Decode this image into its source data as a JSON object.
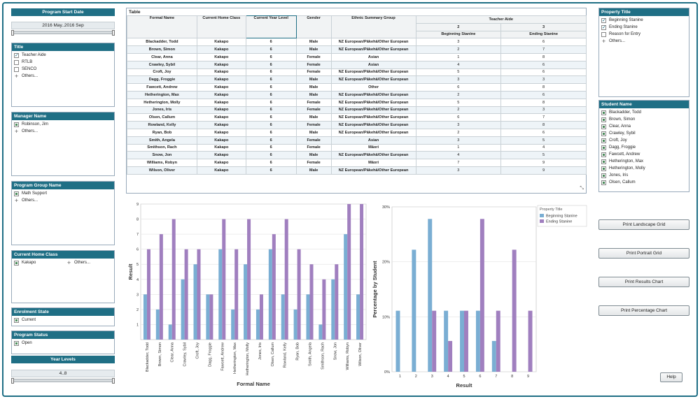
{
  "program_start_date": {
    "title": "Program Start Date",
    "value": "2016 May..2016 Sep"
  },
  "title_filter": {
    "title": "Title",
    "items": [
      {
        "label": "Teacher Aide",
        "checked": true
      },
      {
        "label": "RTLB",
        "checked": false
      },
      {
        "label": "SENCO",
        "checked": false
      }
    ],
    "others": "Others..."
  },
  "manager_name": {
    "title": "Manager Name",
    "items": [
      {
        "label": "Robinson, Jim"
      }
    ],
    "others": "Others..."
  },
  "program_group_name": {
    "title": "Program Group Name",
    "items": [
      {
        "label": "Math Support"
      }
    ],
    "others": "Others..."
  },
  "current_home_class": {
    "title": "Current Home Class",
    "items": [
      {
        "label": "Kakapo"
      }
    ],
    "others": "Others..."
  },
  "enrolment_state": {
    "title": "Enrolment State",
    "items": [
      {
        "label": "Current"
      }
    ]
  },
  "program_status": {
    "title": "Program Status",
    "items": [
      {
        "label": "Open"
      }
    ]
  },
  "year_levels": {
    "title": "Year Levels",
    "value": "4..8"
  },
  "table": {
    "title": "Table",
    "headers": {
      "formal_name": "Formal Name",
      "home_class": "Current Home Class",
      "year_level": "Current Year Level",
      "gender": "Gender",
      "ethnic": "Ethnic Summary Group",
      "teacher_aide": "Teacher Aide",
      "col2": "2",
      "col3": "3",
      "beginning": "Beginning Stanine",
      "ending": "Ending Stanine"
    },
    "rows": [
      [
        "Blackadder, Todd",
        "Kakapo",
        "6",
        "Male",
        "NZ European/Pākehā/Other European",
        "3",
        "6"
      ],
      [
        "Brown, Simon",
        "Kakapo",
        "6",
        "Male",
        "NZ European/Pākehā/Other European",
        "2",
        "7"
      ],
      [
        "Clear, Anna",
        "Kakapo",
        "6",
        "Female",
        "Asian",
        "1",
        "8"
      ],
      [
        "Crawley, Sybil",
        "Kakapo",
        "6",
        "Female",
        "Asian",
        "4",
        "6"
      ],
      [
        "Croft, Joy",
        "Kakapo",
        "6",
        "Female",
        "NZ European/Pākehā/Other European",
        "5",
        "6"
      ],
      [
        "Dagg, Froggie",
        "Kakapo",
        "6",
        "Male",
        "NZ European/Pākehā/Other European",
        "3",
        "3"
      ],
      [
        "Fawcett, Andrew",
        "Kakapo",
        "6",
        "Male",
        "Other",
        "6",
        "8"
      ],
      [
        "Hetherington, Max",
        "Kakapo",
        "6",
        "Male",
        "NZ European/Pākehā/Other European",
        "2",
        "6"
      ],
      [
        "Hetherington, Molly",
        "Kakapo",
        "6",
        "Female",
        "NZ European/Pākehā/Other European",
        "5",
        "8"
      ],
      [
        "Jones, Iris",
        "Kakapo",
        "6",
        "Female",
        "NZ European/Pākehā/Other European",
        "2",
        "3"
      ],
      [
        "Olsen, Callum",
        "Kakapo",
        "6",
        "Male",
        "NZ European/Pākehā/Other European",
        "6",
        "7"
      ],
      [
        "Rowland, Kelly",
        "Kakapo",
        "6",
        "Female",
        "NZ European/Pākehā/Other European",
        "3",
        "8"
      ],
      [
        "Ryan, Bob",
        "Kakapo",
        "6",
        "Male",
        "NZ European/Pākehā/Other European",
        "2",
        "6"
      ],
      [
        "Smith, Angela",
        "Kakapo",
        "6",
        "Female",
        "Asian",
        "3",
        "5"
      ],
      [
        "Smithson, Rach",
        "Kakapo",
        "6",
        "Female",
        "Māori",
        "1",
        "4"
      ],
      [
        "Snow, Jon",
        "Kakapo",
        "6",
        "Male",
        "NZ European/Pākehā/Other European",
        "4",
        "5"
      ],
      [
        "Williams, Robyn",
        "Kakapo",
        "6",
        "Female",
        "Māori",
        "7",
        "9"
      ],
      [
        "Wilson, Oliver",
        "Kakapo",
        "6",
        "Male",
        "NZ European/Pākehā/Other European",
        "3",
        "9"
      ]
    ]
  },
  "property_title": {
    "title": "Property Title",
    "items": [
      {
        "label": "Beginning Stanine",
        "checked": true
      },
      {
        "label": "Ending Stanine",
        "checked": true
      },
      {
        "label": "Reason for Entry",
        "checked": false
      }
    ],
    "others": "Others..."
  },
  "student_name": {
    "title": "Student Name",
    "items": [
      "Blackadder, Todd",
      "Brown, Simon",
      "Clear, Anna",
      "Crawley, Sybil",
      "Croft, Joy",
      "Dagg, Froggie",
      "Fawcett, Andrew",
      "Hetherington, Max",
      "Hetherington, Molly",
      "Jones, Iris",
      "Olsen, Callum"
    ]
  },
  "buttons": {
    "print_landscape": "Print Landscape Grid",
    "print_portrait": "Print Portrait Grid",
    "print_results": "Print Results Chart",
    "print_percentage": "Print Percentage Chart",
    "help": "Help"
  },
  "colors": {
    "accent": "#1f6f85",
    "beginning": "#7aaed3",
    "ending": "#a07fbf"
  },
  "chart_data": [
    {
      "type": "bar",
      "xlabel": "Formal Name",
      "ylabel": "Result",
      "ylim": [
        0,
        9
      ],
      "yticks": [
        "1",
        "2",
        "3",
        "4",
        "5",
        "6",
        "7",
        "8",
        "9"
      ],
      "categories": [
        "Blackadder, Todd",
        "Brown, Simon",
        "Clear, Anna",
        "Crawley, Sybil",
        "Croft, Joy",
        "Dagg, Froggie",
        "Fawcett, Andrew",
        "Hetherington, Max",
        "Hetherington, Molly",
        "Jones, Iris",
        "Olsen, Callum",
        "Rowland, Kelly",
        "Ryan, Bob",
        "Smith, Angela",
        "Smithson, Rach",
        "Snow, Jon",
        "Williams, Robyn",
        "Wilson, Oliver"
      ],
      "series": [
        {
          "values": [
            3,
            2,
            1,
            4,
            5,
            3,
            6,
            2,
            5,
            2,
            6,
            3,
            2,
            3,
            1,
            4,
            7,
            3
          ]
        },
        {
          "values": [
            6,
            7,
            8,
            6,
            6,
            3,
            8,
            6,
            8,
            3,
            7,
            8,
            6,
            5,
            4,
            5,
            9,
            9
          ]
        }
      ],
      "grid": true
    },
    {
      "type": "bar",
      "xlabel": "Result",
      "ylabel": "Percentage by Student",
      "ylim": [
        0,
        30
      ],
      "yticks": [
        "0%",
        "10%",
        "20%",
        "30%"
      ],
      "categories": [
        "1",
        "2",
        "3",
        "4",
        "5",
        "6",
        "7",
        "8",
        "9"
      ],
      "legend_title": "Property Title",
      "legend_position": "top-right",
      "series": [
        {
          "name": "Beginning Stanine",
          "values": [
            11.1,
            22.2,
            27.8,
            11.1,
            11.1,
            11.1,
            5.6,
            0,
            0
          ]
        },
        {
          "name": "Ending Stanine",
          "values": [
            0,
            0,
            11.1,
            5.6,
            11.1,
            27.8,
            11.1,
            22.2,
            11.1
          ]
        }
      ],
      "grid": true
    }
  ]
}
